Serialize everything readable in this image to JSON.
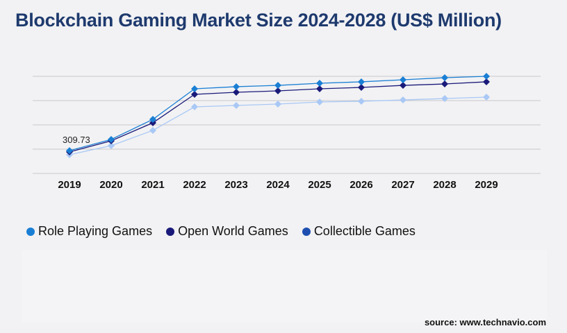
{
  "chart_data": {
    "type": "line",
    "title": "Blockchain Gaming Market Size 2024-2028 (US$ Million)",
    "categories": [
      "2019",
      "2020",
      "2021",
      "2022",
      "2023",
      "2024",
      "2025",
      "2026",
      "2027",
      "2028",
      "2029"
    ],
    "ylim": [
      0,
      1320
    ],
    "grid": true,
    "legend_position": "bottom-left",
    "series": [
      {
        "name": "Role Playing Games",
        "color": "#1a7fd4",
        "legend_color": "#1a7fd4",
        "values": [
          309.73,
          462,
          735,
          1150,
          1179,
          1197,
          1226,
          1245,
          1273,
          1301,
          1320
        ]
      },
      {
        "name": "Open World Games",
        "color": "#1a1a7a",
        "legend_color": "#1a1a7a",
        "values": [
          292,
          443,
          688,
          1075,
          1103,
          1122,
          1150,
          1169,
          1197,
          1216,
          1245
        ]
      },
      {
        "name": "Collectible Games",
        "color": "#a9c8f5",
        "legend_color": "#1e4fb0",
        "values": [
          255,
          377,
          585,
          905,
          924,
          943,
          971,
          981,
          999,
          1018,
          1037
        ]
      }
    ],
    "annotations": [
      {
        "text": "309.73",
        "category": "2019",
        "series": "Role Playing Games"
      }
    ]
  },
  "source": "source: www.technavio.com"
}
